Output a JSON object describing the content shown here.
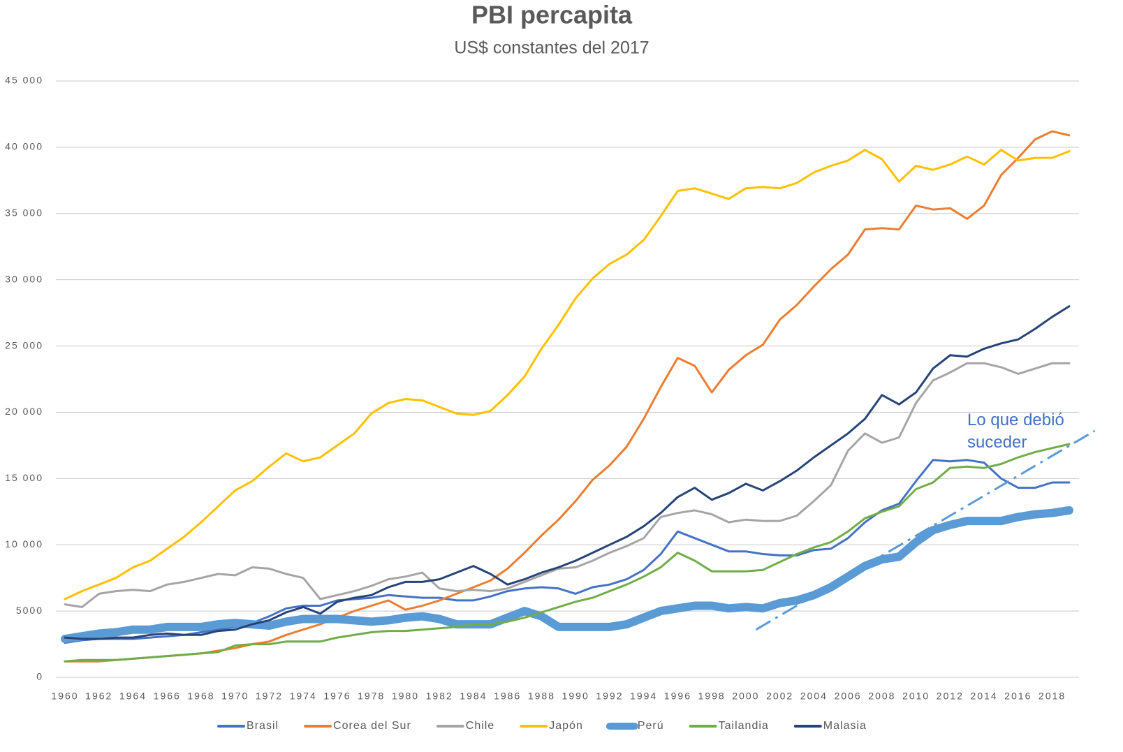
{
  "chart_data": {
    "type": "line",
    "title": "PBI percapita",
    "subtitle": "US$ constantes del 2017",
    "x": [
      1960,
      1961,
      1962,
      1963,
      1964,
      1965,
      1966,
      1967,
      1968,
      1969,
      1970,
      1971,
      1972,
      1973,
      1974,
      1975,
      1976,
      1977,
      1978,
      1979,
      1980,
      1981,
      1982,
      1983,
      1984,
      1985,
      1986,
      1987,
      1988,
      1989,
      1990,
      1991,
      1992,
      1993,
      1994,
      1995,
      1996,
      1997,
      1998,
      1999,
      2000,
      2001,
      2002,
      2003,
      2004,
      2005,
      2006,
      2007,
      2008,
      2009,
      2010,
      2011,
      2012,
      2013,
      2014,
      2015,
      2016,
      2017,
      2018,
      2019
    ],
    "xlim": [
      1960,
      2019
    ],
    "xticks": [
      1960,
      1962,
      1964,
      1966,
      1968,
      1970,
      1972,
      1974,
      1976,
      1978,
      1980,
      1982,
      1984,
      1986,
      1988,
      1990,
      1992,
      1994,
      1996,
      1998,
      2000,
      2002,
      2004,
      2006,
      2008,
      2010,
      2012,
      2014,
      2016,
      2018
    ],
    "ylim": [
      0,
      45000
    ],
    "yticks": [
      0,
      5000,
      {
        "value": 10000,
        "label": "10 000"
      },
      {
        "value": 15000,
        "label": "15 000"
      },
      {
        "value": 20000,
        "label": "20 000"
      },
      {
        "value": 25000,
        "label": "25 000"
      },
      {
        "value": 30000,
        "label": "30 000"
      },
      {
        "value": 35000,
        "label": "35 000"
      },
      {
        "value": 40000,
        "label": "40 000"
      },
      {
        "value": 45000,
        "label": "45 000"
      }
    ],
    "grid": true,
    "legend": "bottom",
    "series": [
      {
        "name": "Brasil",
        "color": "#4472c4",
        "width": 3,
        "values": [
          2600,
          2800,
          2900,
          2900,
          2900,
          3000,
          3100,
          3200,
          3400,
          3600,
          3800,
          4100,
          4600,
          5200,
          5400,
          5400,
          5800,
          5900,
          6000,
          6200,
          6100,
          6000,
          6000,
          5800,
          5800,
          6100,
          6500,
          6700,
          6800,
          6700,
          6300,
          6800,
          7000,
          7400,
          8100,
          9300,
          11000,
          10500,
          10000,
          9500,
          9500,
          9300,
          9200,
          9200,
          9600,
          9700,
          10500,
          11700,
          12600,
          13100,
          14800,
          16400,
          16300,
          16400,
          16200,
          15000,
          14300,
          14300,
          14700,
          14700
        ]
      },
      {
        "name": "Corea del Sur",
        "color": "#ed7d31",
        "width": 3,
        "values": [
          1200,
          1200,
          1200,
          1300,
          1400,
          1500,
          1600,
          1700,
          1800,
          2000,
          2200,
          2500,
          2700,
          3200,
          3600,
          4000,
          4500,
          5000,
          5400,
          5800,
          5100,
          5400,
          5800,
          6300,
          6800,
          7300,
          8200,
          9400,
          10700,
          11900,
          13300,
          14900,
          16000,
          17400,
          19500,
          21900,
          24100,
          23500,
          21500,
          23200,
          24300,
          25100,
          27000,
          28100,
          29500,
          30800,
          31900,
          33800,
          33900,
          33800,
          35600,
          35300,
          35400,
          34600,
          35600,
          37900,
          39200,
          40600,
          41200,
          40900
        ]
      },
      {
        "name": "Chile",
        "color": "#a5a5a5",
        "width": 3,
        "values": [
          5500,
          5300,
          6300,
          6500,
          6600,
          6500,
          7000,
          7200,
          7500,
          7800,
          7700,
          8300,
          8200,
          7800,
          7500,
          5900,
          6200,
          6500,
          6900,
          7400,
          7600,
          7900,
          6700,
          6500,
          6600,
          6500,
          6700,
          7200,
          7700,
          8200,
          8300,
          8800,
          9400,
          9900,
          10500,
          12100,
          12400,
          12600,
          12300,
          11700,
          11900,
          11800,
          11800,
          12200,
          13300,
          14500,
          17100,
          18400,
          17700,
          18100,
          20700,
          22400,
          23000,
          23700,
          23700,
          23400,
          22900,
          23300,
          23700,
          23700
        ]
      },
      {
        "name": "Japón",
        "color": "#ffc000",
        "width": 3,
        "values": [
          5900,
          6500,
          7000,
          7500,
          8300,
          8800,
          9700,
          10600,
          11700,
          12900,
          14100,
          14800,
          15900,
          16900,
          16300,
          16600,
          17500,
          18400,
          19900,
          20700,
          21000,
          20900,
          20400,
          19900,
          19800,
          20100,
          21300,
          22700,
          24800,
          26600,
          28600,
          30100,
          31200,
          31900,
          33000,
          34800,
          36700,
          36900,
          36500,
          36100,
          36900,
          37000,
          36900,
          37300,
          38100,
          38600,
          39000,
          39800,
          39100,
          37400,
          38600,
          38300,
          38700,
          39300,
          38700,
          39800,
          39000,
          39200,
          39200,
          39700
        ]
      },
      {
        "name": "Perú",
        "color": "#5b9bd5",
        "width": 12,
        "values": [
          2900,
          3100,
          3300,
          3400,
          3600,
          3600,
          3800,
          3800,
          3800,
          4000,
          4100,
          4000,
          3900,
          4200,
          4400,
          4400,
          4400,
          4300,
          4200,
          4300,
          4500,
          4600,
          4400,
          4000,
          4000,
          4000,
          4500,
          5000,
          4600,
          3800,
          3800,
          3800,
          3800,
          4000,
          4500,
          5000,
          5200,
          5400,
          5400,
          5200,
          5300,
          5200,
          5600,
          5800,
          6200,
          6800,
          7600,
          8400,
          8900,
          9100,
          10200,
          11100,
          11500,
          11800,
          11800,
          11800,
          12100,
          12300,
          12400,
          12600
        ]
      },
      {
        "name": "Tailandia",
        "color": "#70ad47",
        "width": 3,
        "values": [
          1200,
          1300,
          1300,
          1300,
          1400,
          1500,
          1600,
          1700,
          1800,
          1900,
          2400,
          2500,
          2500,
          2700,
          2700,
          2700,
          3000,
          3200,
          3400,
          3500,
          3500,
          3600,
          3700,
          3800,
          4000,
          4000,
          4200,
          4500,
          4900,
          5300,
          5700,
          6000,
          6500,
          7000,
          7600,
          8300,
          9400,
          8800,
          8000,
          8000,
          8000,
          8100,
          8700,
          9300,
          9800,
          10200,
          11000,
          12000,
          12500,
          12900,
          14200,
          14700,
          15800,
          15900,
          15800,
          16100,
          16600,
          17000,
          17300,
          17600
        ]
      },
      {
        "name": "Malasia",
        "color": "#264478",
        "width": 3,
        "values": [
          3000,
          2900,
          2900,
          3000,
          3000,
          3200,
          3300,
          3200,
          3200,
          3500,
          3600,
          4000,
          4300,
          4900,
          5300,
          4800,
          5700,
          6000,
          6200,
          6800,
          7200,
          7200,
          7400,
          7900,
          8400,
          7800,
          7000,
          7400,
          7900,
          8300,
          8800,
          9400,
          10000,
          10600,
          11400,
          12400,
          13600,
          14300,
          13400,
          13900,
          14600,
          14100,
          14800,
          15600,
          16600,
          17500,
          18400,
          19500,
          21300,
          20600,
          21500,
          23300,
          24300,
          24200,
          24800,
          25200,
          25500,
          26300,
          27200,
          28000
        ]
      }
    ],
    "annotation": {
      "text": "Lo que debió suceder",
      "color": "#4472c4"
    },
    "trend": {
      "x": [
        2000.6,
        2020.5
      ],
      "values": [
        3600,
        18600
      ],
      "color": "#5b9bd5"
    }
  }
}
